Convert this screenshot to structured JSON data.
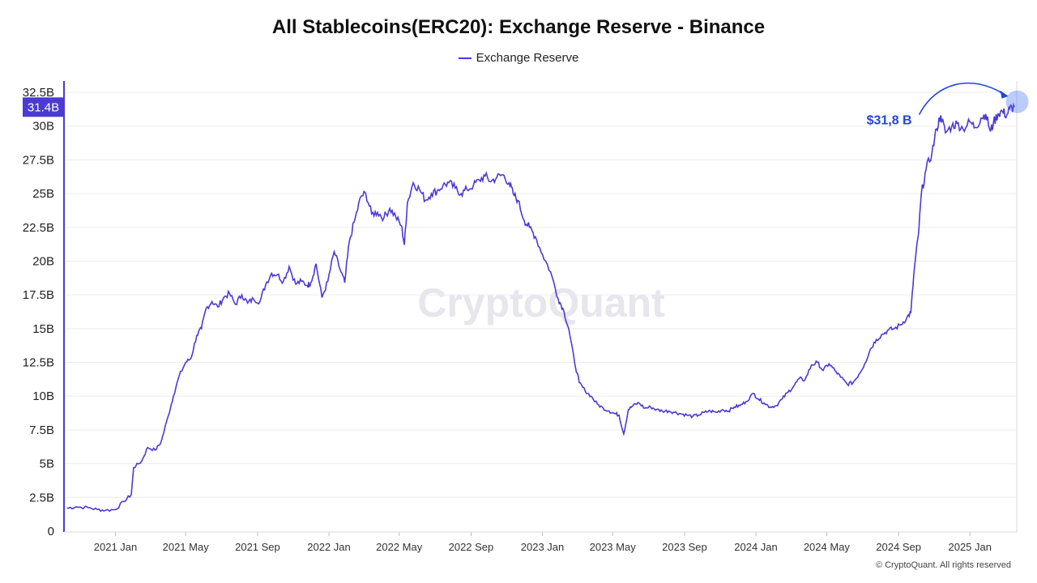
{
  "title": "All Stablecoins(ERC20): Exchange Reserve - Binance",
  "watermark": "CryptoQuant",
  "copyright": "© CryptoQuant. All rights reserved",
  "colors": {
    "series": "#4b3ad4",
    "annotation": "#1f46e0",
    "current_badge": "#4b3ad4",
    "grid": "#ececf2"
  },
  "chart_data": {
    "type": "line",
    "title": "All Stablecoins(ERC20): Exchange Reserve - Binance",
    "xlabel": "",
    "ylabel": "",
    "ylim": [
      0,
      32.5
    ],
    "y_unit": "B",
    "grid": true,
    "legend_position": "top-center",
    "y_ticks": [
      "0",
      "2.5B",
      "5B",
      "7.5B",
      "10B",
      "12.5B",
      "15B",
      "17.5B",
      "20B",
      "22.5B",
      "25B",
      "27.5B",
      "30B",
      "32.5B"
    ],
    "x_ticks": [
      "2021 Jan",
      "2021 May",
      "2021 Sep",
      "2022 Jan",
      "2022 May",
      "2022 Sep",
      "2023 Jan",
      "2023 May",
      "2023 Sep",
      "2024 Jan",
      "2024 May",
      "2024 Sep",
      "2025 Jan"
    ],
    "current_value_label": "31.4B",
    "annotation": {
      "text": "$31,8 B",
      "x": "2025-03-20",
      "y": 31.8
    },
    "series": [
      {
        "name": "Exchange Reserve",
        "points": [
          [
            "2020-10-10",
            1.7
          ],
          [
            "2020-10-25",
            1.8
          ],
          [
            "2020-11-15",
            1.75
          ],
          [
            "2020-12-01",
            1.6
          ],
          [
            "2020-12-15",
            1.55
          ],
          [
            "2021-01-01",
            1.6
          ],
          [
            "2021-01-15",
            2.2
          ],
          [
            "2021-01-28",
            2.7
          ],
          [
            "2021-02-01",
            4.7
          ],
          [
            "2021-02-15",
            5.2
          ],
          [
            "2021-02-25",
            6.2
          ],
          [
            "2021-03-10",
            6.0
          ],
          [
            "2021-03-20",
            6.6
          ],
          [
            "2021-04-01",
            8.5
          ],
          [
            "2021-04-10",
            10.0
          ],
          [
            "2021-04-20",
            11.5
          ],
          [
            "2021-05-01",
            12.5
          ],
          [
            "2021-05-10",
            12.8
          ],
          [
            "2021-05-20",
            14.5
          ],
          [
            "2021-05-28",
            15.0
          ],
          [
            "2021-06-05",
            16.5
          ],
          [
            "2021-06-15",
            17.0
          ],
          [
            "2021-06-25",
            16.6
          ],
          [
            "2021-07-05",
            17.3
          ],
          [
            "2021-07-15",
            17.6
          ],
          [
            "2021-07-25",
            16.8
          ],
          [
            "2021-08-05",
            17.5
          ],
          [
            "2021-08-15",
            16.9
          ],
          [
            "2021-08-25",
            17.2
          ],
          [
            "2021-09-05",
            17.0
          ],
          [
            "2021-09-15",
            18.3
          ],
          [
            "2021-09-25",
            19.1
          ],
          [
            "2021-10-05",
            19.0
          ],
          [
            "2021-10-15",
            18.5
          ],
          [
            "2021-10-25",
            19.6
          ],
          [
            "2021-11-05",
            18.3
          ],
          [
            "2021-11-15",
            18.5
          ],
          [
            "2021-11-25",
            18.2
          ],
          [
            "2021-12-01",
            18.4
          ],
          [
            "2021-12-10",
            19.8
          ],
          [
            "2021-12-20",
            17.3
          ],
          [
            "2021-12-30",
            18.5
          ],
          [
            "2022-01-10",
            20.7
          ],
          [
            "2022-01-20",
            19.4
          ],
          [
            "2022-01-28",
            18.4
          ],
          [
            "2022-02-05",
            21.5
          ],
          [
            "2022-02-15",
            23.2
          ],
          [
            "2022-02-25",
            24.8
          ],
          [
            "2022-03-05",
            25.0
          ],
          [
            "2022-03-15",
            23.5
          ],
          [
            "2022-03-25",
            23.6
          ],
          [
            "2022-04-05",
            23.2
          ],
          [
            "2022-04-15",
            23.9
          ],
          [
            "2022-04-25",
            23.3
          ],
          [
            "2022-05-05",
            22.6
          ],
          [
            "2022-05-10",
            21.2
          ],
          [
            "2022-05-15",
            24.3
          ],
          [
            "2022-05-25",
            25.8
          ],
          [
            "2022-06-05",
            25.3
          ],
          [
            "2022-06-15",
            24.5
          ],
          [
            "2022-06-25",
            25.0
          ],
          [
            "2022-07-05",
            25.2
          ],
          [
            "2022-07-15",
            25.6
          ],
          [
            "2022-07-25",
            25.8
          ],
          [
            "2022-08-05",
            25.4
          ],
          [
            "2022-08-15",
            25.0
          ],
          [
            "2022-08-25",
            25.3
          ],
          [
            "2022-09-05",
            25.6
          ],
          [
            "2022-09-15",
            26.0
          ],
          [
            "2022-09-25",
            26.3
          ],
          [
            "2022-10-05",
            25.9
          ],
          [
            "2022-10-15",
            26.2
          ],
          [
            "2022-10-25",
            26.4
          ],
          [
            "2022-11-05",
            25.8
          ],
          [
            "2022-11-12",
            25.0
          ],
          [
            "2022-11-20",
            24.5
          ],
          [
            "2022-12-01",
            23.0
          ],
          [
            "2022-12-10",
            22.5
          ],
          [
            "2022-12-20",
            21.8
          ],
          [
            "2023-01-01",
            20.5
          ],
          [
            "2023-01-15",
            19.2
          ],
          [
            "2023-01-28",
            17.2
          ],
          [
            "2023-02-05",
            16.5
          ],
          [
            "2023-02-15",
            15.0
          ],
          [
            "2023-02-25",
            12.5
          ],
          [
            "2023-03-05",
            11.0
          ],
          [
            "2023-03-15",
            10.4
          ],
          [
            "2023-03-25",
            10.0
          ],
          [
            "2023-04-05",
            9.4
          ],
          [
            "2023-04-15",
            9.1
          ],
          [
            "2023-04-25",
            8.9
          ],
          [
            "2023-05-05",
            8.7
          ],
          [
            "2023-05-12",
            8.6
          ],
          [
            "2023-05-20",
            7.2
          ],
          [
            "2023-05-28",
            9.0
          ],
          [
            "2023-06-05",
            9.3
          ],
          [
            "2023-06-15",
            9.5
          ],
          [
            "2023-06-25",
            9.1
          ],
          [
            "2023-07-05",
            9.2
          ],
          [
            "2023-07-15",
            9.0
          ],
          [
            "2023-07-25",
            8.9
          ],
          [
            "2023-08-05",
            8.9
          ],
          [
            "2023-08-15",
            8.8
          ],
          [
            "2023-08-25",
            8.7
          ],
          [
            "2023-09-05",
            8.6
          ],
          [
            "2023-09-15",
            8.5
          ],
          [
            "2023-09-25",
            8.6
          ],
          [
            "2023-10-05",
            8.8
          ],
          [
            "2023-10-15",
            8.9
          ],
          [
            "2023-10-25",
            8.8
          ],
          [
            "2023-11-05",
            9.0
          ],
          [
            "2023-11-15",
            8.9
          ],
          [
            "2023-11-25",
            9.2
          ],
          [
            "2023-12-05",
            9.3
          ],
          [
            "2023-12-15",
            9.6
          ],
          [
            "2023-12-28",
            10.2
          ],
          [
            "2024-01-05",
            9.8
          ],
          [
            "2024-01-15",
            9.5
          ],
          [
            "2024-01-25",
            9.2
          ],
          [
            "2024-02-05",
            9.3
          ],
          [
            "2024-02-15",
            9.8
          ],
          [
            "2024-02-25",
            10.3
          ],
          [
            "2024-03-05",
            10.7
          ],
          [
            "2024-03-15",
            11.3
          ],
          [
            "2024-03-25",
            11.2
          ],
          [
            "2024-04-05",
            12.3
          ],
          [
            "2024-04-15",
            12.5
          ],
          [
            "2024-04-25",
            11.9
          ],
          [
            "2024-05-05",
            12.4
          ],
          [
            "2024-05-15",
            11.9
          ],
          [
            "2024-05-25",
            11.4
          ],
          [
            "2024-06-05",
            10.9
          ],
          [
            "2024-06-15",
            11.0
          ],
          [
            "2024-06-25",
            11.6
          ],
          [
            "2024-07-05",
            12.4
          ],
          [
            "2024-07-15",
            13.5
          ],
          [
            "2024-07-25",
            14.2
          ],
          [
            "2024-08-05",
            14.6
          ],
          [
            "2024-08-15",
            14.9
          ],
          [
            "2024-08-25",
            15.0
          ],
          [
            "2024-09-05",
            15.3
          ],
          [
            "2024-09-15",
            15.8
          ],
          [
            "2024-09-22",
            16.2
          ],
          [
            "2024-09-28",
            19.5
          ],
          [
            "2024-10-05",
            22.0
          ],
          [
            "2024-10-10",
            25.0
          ],
          [
            "2024-10-18",
            26.8
          ],
          [
            "2024-10-28",
            28.0
          ],
          [
            "2024-11-05",
            29.8
          ],
          [
            "2024-11-12",
            30.8
          ],
          [
            "2024-11-20",
            29.5
          ],
          [
            "2024-12-01",
            30.0
          ],
          [
            "2024-12-10",
            30.2
          ],
          [
            "2024-12-20",
            29.8
          ],
          [
            "2025-01-01",
            30.3
          ],
          [
            "2025-01-10",
            29.9
          ],
          [
            "2025-01-20",
            30.6
          ],
          [
            "2025-01-28",
            30.9
          ],
          [
            "2025-02-05",
            29.6
          ],
          [
            "2025-02-10",
            30.2
          ],
          [
            "2025-02-18",
            30.9
          ],
          [
            "2025-02-25",
            31.1
          ],
          [
            "2025-03-05",
            30.8
          ],
          [
            "2025-03-10",
            31.3
          ],
          [
            "2025-03-18",
            31.4
          ]
        ]
      }
    ]
  }
}
